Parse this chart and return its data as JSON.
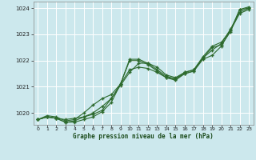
{
  "bg_color": "#cce8ed",
  "grid_color": "#ffffff",
  "line_color": "#2d6a2d",
  "marker_color": "#2d6a2d",
  "xlabel": "Graphe pression niveau de la mer (hPa)",
  "xlabel_color": "#1a4a1a",
  "xlim": [
    -0.5,
    23.5
  ],
  "ylim": [
    1019.55,
    1024.25
  ],
  "yticks": [
    1020,
    1021,
    1022,
    1023,
    1024
  ],
  "xticks": [
    0,
    1,
    2,
    3,
    4,
    5,
    6,
    7,
    8,
    9,
    10,
    11,
    12,
    13,
    14,
    15,
    16,
    17,
    18,
    19,
    20,
    21,
    22,
    23
  ],
  "series": [
    [
      1019.75,
      1019.85,
      1019.8,
      1019.75,
      1019.8,
      1019.85,
      1019.95,
      1020.1,
      1020.55,
      1021.1,
      1022.0,
      1022.0,
      1021.85,
      1021.6,
      1021.35,
      1021.25,
      1021.5,
      1021.6,
      1022.1,
      1022.5,
      1022.6,
      1023.1,
      1023.95,
      1024.0
    ],
    [
      1019.75,
      1019.85,
      1019.8,
      1019.65,
      1019.65,
      1019.75,
      1019.85,
      1020.05,
      1020.4,
      1021.1,
      1022.05,
      1022.05,
      1021.9,
      1021.65,
      1021.4,
      1021.3,
      1021.55,
      1021.65,
      1022.15,
      1022.55,
      1022.7,
      1023.15,
      1023.95,
      1024.05
    ],
    [
      1019.75,
      1019.9,
      1019.85,
      1019.7,
      1019.75,
      1020.0,
      1020.3,
      1020.55,
      1020.7,
      1021.1,
      1021.65,
      1021.75,
      1021.7,
      1021.55,
      1021.35,
      1021.3,
      1021.5,
      1021.6,
      1022.05,
      1022.2,
      1022.55,
      1023.15,
      1023.8,
      1023.95
    ],
    [
      1019.75,
      1019.85,
      1019.8,
      1019.65,
      1019.7,
      1019.85,
      1020.0,
      1020.25,
      1020.55,
      1021.05,
      1021.55,
      1021.9,
      1021.9,
      1021.75,
      1021.45,
      1021.35,
      1021.55,
      1021.65,
      1022.1,
      1022.4,
      1022.65,
      1023.2,
      1023.85,
      1024.0
    ]
  ]
}
